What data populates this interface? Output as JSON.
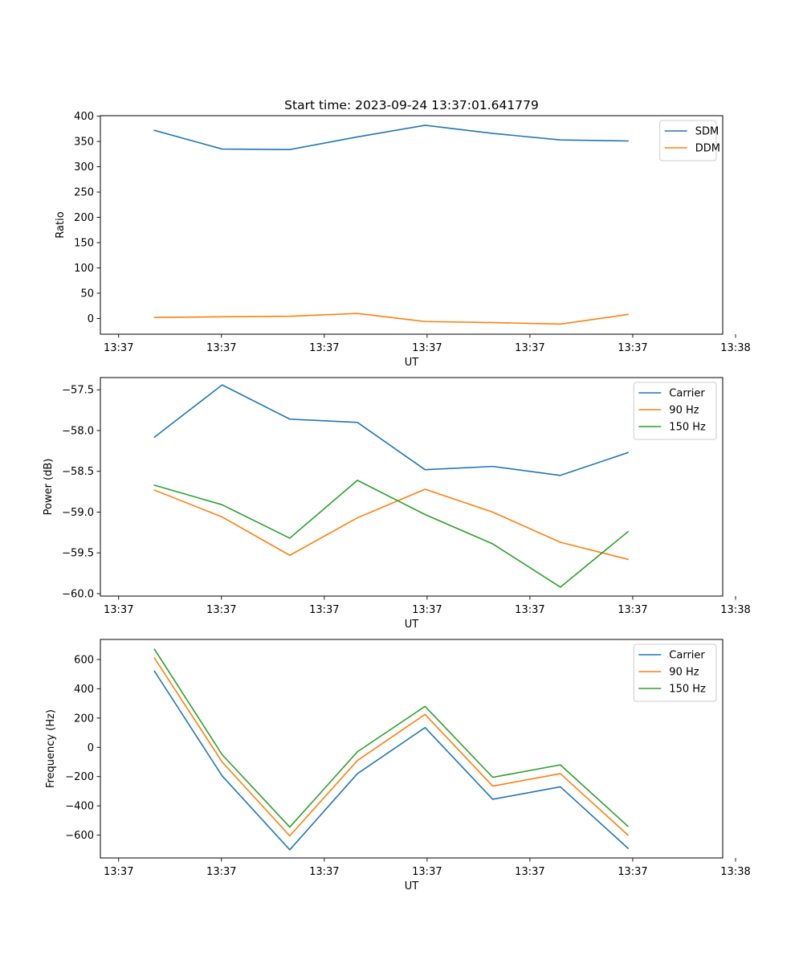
{
  "figure_title": "Start time: 2023-09-24 13:37:01.641779",
  "chart_data": [
    {
      "type": "line",
      "name": "ratio-chart",
      "title": "Start time: 2023-09-24 13:37:01.641779",
      "xlabel": "UT",
      "ylabel": "Ratio",
      "x": [
        1,
        2,
        3,
        4,
        5,
        6,
        7,
        8
      ],
      "xlim": [
        0.2,
        9.4
      ],
      "x_ticks": [
        0.47,
        1.99,
        3.51,
        5.03,
        6.55,
        8.07,
        9.59
      ],
      "x_tick_labels": [
        "13:37",
        "13:37",
        "13:37",
        "13:37",
        "13:37",
        "13:37",
        "13:38"
      ],
      "ylim": [
        -31,
        401
      ],
      "y_ticks": [
        0,
        50,
        100,
        150,
        200,
        250,
        300,
        350,
        400
      ],
      "y_tick_labels": [
        "0",
        "50",
        "100",
        "150",
        "200",
        "250",
        "300",
        "350",
        "400"
      ],
      "legend_position": "upper right",
      "series": [
        {
          "name": "SDM",
          "color": "#1f77b4",
          "values": [
            372,
            335,
            334,
            359,
            382,
            366,
            353,
            351
          ]
        },
        {
          "name": "DDM",
          "color": "#ff7f0e",
          "values": [
            2,
            3.5,
            4.5,
            10,
            -6,
            -8,
            -11,
            8
          ]
        }
      ]
    },
    {
      "type": "line",
      "name": "power-chart",
      "title": "",
      "xlabel": "UT",
      "ylabel": "Power (dB)",
      "x": [
        1,
        2,
        3,
        4,
        5,
        6,
        7,
        8
      ],
      "xlim": [
        0.2,
        9.4
      ],
      "x_ticks": [
        0.47,
        1.99,
        3.51,
        5.03,
        6.55,
        8.07,
        9.59
      ],
      "x_tick_labels": [
        "13:37",
        "13:37",
        "13:37",
        "13:37",
        "13:37",
        "13:37",
        "13:38"
      ],
      "ylim": [
        -60.03,
        -57.35
      ],
      "y_ticks": [
        -60.0,
        -59.5,
        -59.0,
        -58.5,
        -58.0,
        -57.5
      ],
      "y_tick_labels": [
        "−60.0",
        "−59.5",
        "−59.0",
        "−58.5",
        "−58.0",
        "−57.5"
      ],
      "legend_position": "upper right",
      "series": [
        {
          "name": "Carrier",
          "color": "#1f77b4",
          "values": [
            -58.08,
            -57.44,
            -57.86,
            -57.9,
            -58.48,
            -58.44,
            -58.55,
            -58.27
          ]
        },
        {
          "name": "90 Hz",
          "color": "#ff7f0e",
          "values": [
            -58.73,
            -59.06,
            -59.53,
            -59.07,
            -58.72,
            -59.0,
            -59.37,
            -59.58
          ]
        },
        {
          "name": "150 Hz",
          "color": "#2ca02c",
          "values": [
            -58.67,
            -58.91,
            -59.32,
            -58.61,
            -59.03,
            -59.39,
            -59.92,
            -59.24
          ]
        }
      ]
    },
    {
      "type": "line",
      "name": "frequency-chart",
      "title": "",
      "xlabel": "UT",
      "ylabel": "Frequency (Hz)",
      "x": [
        1,
        2,
        3,
        4,
        5,
        6,
        7,
        8
      ],
      "xlim": [
        0.2,
        9.4
      ],
      "x_ticks": [
        0.47,
        1.99,
        3.51,
        5.03,
        6.55,
        8.07,
        9.59
      ],
      "x_tick_labels": [
        "13:37",
        "13:37",
        "13:37",
        "13:37",
        "13:37",
        "13:37",
        "13:38"
      ],
      "ylim": [
        -756,
        737
      ],
      "y_ticks": [
        -600,
        -400,
        -200,
        0,
        200,
        400,
        600
      ],
      "y_tick_labels": [
        "−600",
        "−400",
        "−200",
        "0",
        "200",
        "400",
        "600"
      ],
      "legend_position": "upper right",
      "series": [
        {
          "name": "Carrier",
          "color": "#1f77b4",
          "values": [
            520,
            -195,
            -700,
            -180,
            135,
            -355,
            -270,
            -690
          ]
        },
        {
          "name": "90 Hz",
          "color": "#ff7f0e",
          "values": [
            610,
            -100,
            -605,
            -90,
            225,
            -265,
            -180,
            -600
          ]
        },
        {
          "name": "150 Hz",
          "color": "#2ca02c",
          "values": [
            670,
            -50,
            -545,
            -30,
            280,
            -205,
            -120,
            -540
          ]
        }
      ]
    }
  ]
}
